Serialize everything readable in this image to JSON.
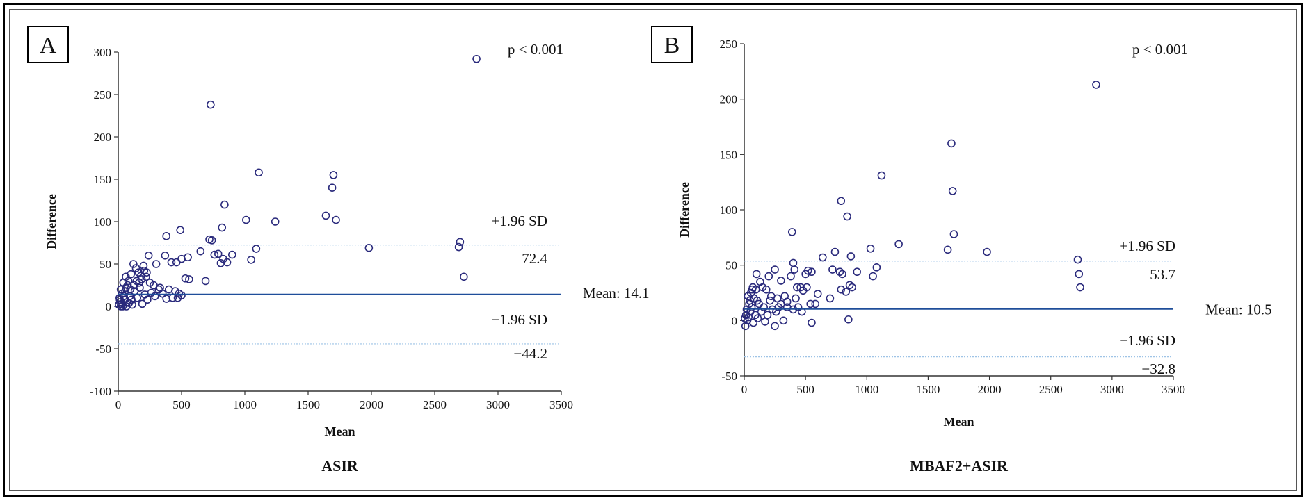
{
  "chart_data": [
    {
      "panel": "A",
      "type": "scatter",
      "title": "ASIR",
      "xlabel": "Mean",
      "ylabel": "Difference",
      "xlim": [
        0,
        3500
      ],
      "ylim": [
        -100,
        300
      ],
      "xticks": [
        0,
        500,
        1000,
        1500,
        2000,
        2500,
        3000,
        3500
      ],
      "yticks": [
        -100,
        -50,
        0,
        50,
        100,
        150,
        200,
        250,
        300
      ],
      "p_value": "p < 0.001",
      "mean_label": "Mean: 14.1",
      "mean": 14.1,
      "upper_loa": 72.4,
      "upper_loa_label": "+1.96 SD",
      "upper_loa_value": "72.4",
      "lower_loa": -44.2,
      "lower_loa_label": "−1.96 SD",
      "lower_loa_value": "−44.2",
      "points": [
        [
          2830,
          292
        ],
        [
          730,
          238
        ],
        [
          1110,
          158
        ],
        [
          1700,
          155
        ],
        [
          1690,
          140
        ],
        [
          840,
          120
        ],
        [
          1640,
          107
        ],
        [
          1720,
          102
        ],
        [
          1010,
          102
        ],
        [
          1240,
          100
        ],
        [
          820,
          93
        ],
        [
          490,
          90
        ],
        [
          380,
          83
        ],
        [
          720,
          79
        ],
        [
          740,
          78
        ],
        [
          2700,
          76
        ],
        [
          2690,
          70
        ],
        [
          1980,
          69
        ],
        [
          1090,
          68
        ],
        [
          650,
          65
        ],
        [
          790,
          62
        ],
        [
          760,
          61
        ],
        [
          900,
          61
        ],
        [
          370,
          60
        ],
        [
          240,
          60
        ],
        [
          1050,
          55
        ],
        [
          830,
          56
        ],
        [
          810,
          51
        ],
        [
          860,
          52
        ],
        [
          550,
          58
        ],
        [
          500,
          56
        ],
        [
          420,
          52
        ],
        [
          460,
          52
        ],
        [
          300,
          50
        ],
        [
          120,
          50
        ],
        [
          200,
          48
        ],
        [
          560,
          32
        ],
        [
          530,
          33
        ],
        [
          2730,
          35
        ],
        [
          690,
          30
        ],
        [
          140,
          45
        ],
        [
          160,
          40
        ],
        [
          100,
          38
        ],
        [
          180,
          36
        ],
        [
          220,
          35
        ],
        [
          60,
          35
        ],
        [
          80,
          30
        ],
        [
          40,
          28
        ],
        [
          250,
          28
        ],
        [
          280,
          25
        ],
        [
          330,
          22
        ],
        [
          400,
          20
        ],
        [
          450,
          18
        ],
        [
          480,
          15
        ],
        [
          500,
          13
        ],
        [
          430,
          10
        ],
        [
          470,
          10
        ],
        [
          380,
          9
        ],
        [
          20,
          20
        ],
        [
          30,
          15
        ],
        [
          10,
          10
        ],
        [
          15,
          5
        ],
        [
          25,
          3
        ],
        [
          35,
          0
        ],
        [
          5,
          2
        ],
        [
          50,
          8
        ],
        [
          70,
          5
        ],
        [
          90,
          12
        ],
        [
          110,
          2
        ],
        [
          130,
          18
        ],
        [
          150,
          10
        ],
        [
          170,
          22
        ],
        [
          190,
          3
        ],
        [
          210,
          14
        ],
        [
          230,
          8
        ],
        [
          260,
          16
        ],
        [
          290,
          12
        ],
        [
          320,
          20
        ],
        [
          350,
          15
        ],
        [
          60,
          22
        ],
        [
          45,
          12
        ],
        [
          55,
          18
        ],
        [
          75,
          25
        ],
        [
          95,
          20
        ],
        [
          65,
          0
        ],
        [
          85,
          4
        ],
        [
          105,
          8
        ],
        [
          125,
          25
        ],
        [
          145,
          30
        ],
        [
          165,
          28
        ],
        [
          185,
          32
        ],
        [
          205,
          42
        ],
        [
          225,
          40
        ],
        [
          20,
          0
        ],
        [
          12,
          8
        ]
      ]
    },
    {
      "panel": "B",
      "type": "scatter",
      "title": "MBAF2+ASIR",
      "xlabel": "Mean",
      "ylabel": "Difference",
      "xlim": [
        0,
        3500
      ],
      "ylim": [
        -50,
        250
      ],
      "xticks": [
        0,
        500,
        1000,
        1500,
        2000,
        2500,
        3000,
        3500
      ],
      "yticks": [
        -50,
        0,
        50,
        100,
        150,
        200,
        250
      ],
      "p_value": "p < 0.001",
      "mean_label": "Mean: 10.5",
      "mean": 10.5,
      "upper_loa": 53.7,
      "upper_loa_label": "+1.96 SD",
      "upper_loa_value": "53.7",
      "lower_loa": -32.8,
      "lower_loa_label": "−1.96 SD",
      "lower_loa_value": "−32.8",
      "points": [
        [
          2870,
          213
        ],
        [
          1690,
          160
        ],
        [
          1700,
          117
        ],
        [
          1120,
          131
        ],
        [
          790,
          108
        ],
        [
          840,
          94
        ],
        [
          390,
          80
        ],
        [
          1710,
          78
        ],
        [
          1260,
          69
        ],
        [
          1030,
          65
        ],
        [
          1660,
          64
        ],
        [
          1980,
          62
        ],
        [
          740,
          62
        ],
        [
          870,
          58
        ],
        [
          2720,
          55
        ],
        [
          1080,
          48
        ],
        [
          400,
          52
        ],
        [
          410,
          46
        ],
        [
          520,
          45
        ],
        [
          550,
          44
        ],
        [
          250,
          46
        ],
        [
          380,
          40
        ],
        [
          1050,
          40
        ],
        [
          2730,
          42
        ],
        [
          2740,
          30
        ],
        [
          800,
          42
        ],
        [
          780,
          44
        ],
        [
          920,
          44
        ],
        [
          720,
          46
        ],
        [
          640,
          57
        ],
        [
          500,
          42
        ],
        [
          430,
          30
        ],
        [
          460,
          30
        ],
        [
          480,
          27
        ],
        [
          300,
          36
        ],
        [
          200,
          40
        ],
        [
          150,
          30
        ],
        [
          100,
          42
        ],
        [
          130,
          35
        ],
        [
          180,
          28
        ],
        [
          220,
          22
        ],
        [
          270,
          20
        ],
        [
          330,
          22
        ],
        [
          350,
          17
        ],
        [
          420,
          20
        ],
        [
          600,
          24
        ],
        [
          700,
          20
        ],
        [
          790,
          28
        ],
        [
          830,
          26
        ],
        [
          860,
          32
        ],
        [
          880,
          30
        ],
        [
          510,
          30
        ],
        [
          540,
          15
        ],
        [
          580,
          15
        ],
        [
          550,
          -2
        ],
        [
          850,
          1
        ],
        [
          320,
          0
        ],
        [
          250,
          -5
        ],
        [
          30,
          22
        ],
        [
          40,
          15
        ],
        [
          20,
          10
        ],
        [
          15,
          5
        ],
        [
          10,
          -5
        ],
        [
          25,
          0
        ],
        [
          50,
          8
        ],
        [
          60,
          12
        ],
        [
          70,
          30
        ],
        [
          80,
          20
        ],
        [
          90,
          5
        ],
        [
          110,
          2
        ],
        [
          120,
          15
        ],
        [
          140,
          8
        ],
        [
          160,
          12
        ],
        [
          170,
          -1
        ],
        [
          190,
          5
        ],
        [
          210,
          18
        ],
        [
          230,
          10
        ],
        [
          260,
          8
        ],
        [
          280,
          12
        ],
        [
          300,
          15
        ],
        [
          350,
          12
        ],
        [
          400,
          10
        ],
        [
          440,
          12
        ],
        [
          470,
          8
        ],
        [
          35,
          3
        ],
        [
          45,
          18
        ],
        [
          55,
          25
        ],
        [
          65,
          28
        ],
        [
          75,
          -2
        ],
        [
          95,
          28
        ],
        [
          105,
          18
        ],
        [
          5,
          2
        ]
      ]
    }
  ]
}
